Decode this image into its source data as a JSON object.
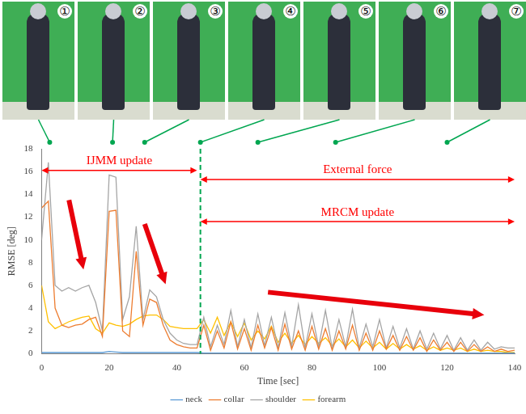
{
  "chart_data": {
    "type": "line",
    "xlabel": "Time [sec]",
    "ylabel": "RMSE [deg]",
    "xlim": [
      0,
      140
    ],
    "xticks": [
      0,
      20,
      40,
      60,
      80,
      100,
      120,
      140
    ],
    "ylim": [
      0,
      18
    ],
    "yticks": [
      0,
      2,
      4,
      6,
      8,
      10,
      12,
      14,
      16,
      18
    ],
    "grid": false,
    "legend": "bottom",
    "x": [
      0,
      2,
      4,
      6,
      8,
      10,
      12,
      14,
      16,
      18,
      20,
      22,
      24,
      26,
      28,
      30,
      32,
      34,
      36,
      38,
      40,
      42,
      44,
      46,
      48,
      50,
      52,
      54,
      56,
      58,
      60,
      62,
      64,
      66,
      68,
      70,
      72,
      74,
      76,
      78,
      80,
      82,
      84,
      86,
      88,
      90,
      92,
      94,
      96,
      98,
      100,
      102,
      104,
      106,
      108,
      110,
      112,
      114,
      116,
      118,
      120,
      122,
      124,
      126,
      128,
      130,
      132,
      134,
      136,
      138,
      140
    ],
    "series": [
      {
        "name": "neck",
        "color": "#5b9bd5",
        "values": [
          0.1,
          0.1,
          0.1,
          0.1,
          0.1,
          0.1,
          0.1,
          0.1,
          0.1,
          0.1,
          0.2,
          0.15,
          0.1,
          0.1,
          0.1,
          0.1,
          0.1,
          0.1,
          0.1,
          0.1,
          0.1,
          0.1,
          0.1,
          0.1,
          0.05,
          0.05,
          0.05,
          0.05,
          0.05,
          0.05,
          0.05,
          0.05,
          0.05,
          0.05,
          0.05,
          0.05,
          0.05,
          0.05,
          0.05,
          0.05,
          0.05,
          0.05,
          0.05,
          0.05,
          0.05,
          0.05,
          0.05,
          0.05,
          0.05,
          0.05,
          0.05,
          0.05,
          0.05,
          0.05,
          0.05,
          0.05,
          0.05,
          0.05,
          0.05,
          0.05,
          0.05,
          0.05,
          0.05,
          0.05,
          0.05,
          0.05,
          0.05,
          0.05,
          0.05,
          0.05,
          0.05
        ]
      },
      {
        "name": "collar",
        "color": "#ed7d31",
        "values": [
          12.8,
          13.4,
          4,
          2.5,
          2.3,
          2.5,
          2.6,
          3.0,
          3.2,
          1.5,
          12.5,
          12.6,
          2,
          1.5,
          9,
          2.5,
          4.8,
          4.5,
          2.5,
          1.2,
          0.8,
          0.6,
          0.5,
          0.5,
          2.5,
          0.3,
          2.0,
          0.5,
          2.8,
          0.4,
          2.2,
          0.3,
          2.5,
          0.5,
          2.3,
          0.3,
          2.6,
          0.4,
          2.0,
          0.3,
          2.4,
          0.4,
          2.2,
          0.3,
          2.0,
          0.4,
          2.5,
          0.3,
          1.8,
          0.3,
          2.0,
          0.4,
          1.6,
          0.3,
          1.5,
          0.3,
          1.4,
          0.2,
          1.2,
          0.3,
          1.0,
          0.2,
          1.0,
          0.2,
          0.8,
          0.2,
          0.6,
          0.2,
          0.4,
          0.2,
          0.3
        ]
      },
      {
        "name": "shoulder",
        "color": "#a5a5a5",
        "values": [
          10,
          16.8,
          6,
          5.5,
          5.8,
          5.5,
          5.8,
          6.0,
          4.5,
          2,
          15.7,
          15.5,
          3,
          5,
          11.2,
          3,
          5.6,
          5.0,
          3,
          1.8,
          1.2,
          0.9,
          0.8,
          0.8,
          3.2,
          0.6,
          2.5,
          0.8,
          3.8,
          0.6,
          3.0,
          0.5,
          3.5,
          0.7,
          3.2,
          0.5,
          3.6,
          0.6,
          4.3,
          0.5,
          3.5,
          0.6,
          3.8,
          0.5,
          3.0,
          0.6,
          3.9,
          0.5,
          2.6,
          0.6,
          3.0,
          0.5,
          2.4,
          0.5,
          2.2,
          0.4,
          2.0,
          0.4,
          1.8,
          0.4,
          1.6,
          0.3,
          1.4,
          0.3,
          1.2,
          0.3,
          1.0,
          0.4,
          0.6,
          0.5,
          0.5
        ]
      },
      {
        "name": "forearm",
        "color": "#ffc000",
        "values": [
          6,
          2.8,
          2.2,
          2.5,
          2.8,
          3.0,
          3.2,
          3.3,
          2.2,
          1.8,
          2.7,
          2.5,
          2.4,
          2.6,
          3.0,
          3.3,
          3.4,
          3.4,
          3.0,
          2.4,
          2.3,
          2.2,
          2.2,
          2.2,
          3.0,
          1.8,
          3.2,
          1.6,
          2.8,
          1.5,
          2.7,
          1.2,
          2.0,
          1.3,
          2.4,
          1.0,
          1.8,
          0.9,
          1.6,
          0.8,
          1.5,
          0.9,
          1.4,
          0.7,
          1.3,
          0.6,
          1.2,
          0.5,
          1.1,
          0.5,
          1.0,
          0.4,
          0.9,
          0.4,
          0.8,
          0.4,
          0.7,
          0.3,
          0.6,
          0.3,
          0.5,
          0.3,
          0.5,
          0.2,
          0.4,
          0.2,
          0.3,
          0.2,
          0.2,
          0.1,
          0.1
        ]
      }
    ],
    "annotations": [
      {
        "text": "IJMM update",
        "x": [
          0,
          46
        ],
        "y": 16.1
      },
      {
        "text": "External force",
        "x": [
          47,
          140
        ],
        "y": 15.3
      },
      {
        "text": "MRCM update",
        "x": [
          47,
          140
        ],
        "y": 11.6
      }
    ],
    "arrows": [
      {
        "x": [
          8.1,
          12.4
        ],
        "y": [
          13.5,
          7.4
        ]
      },
      {
        "x": [
          30.5,
          36.7
        ],
        "y": [
          11.4,
          6.1
        ]
      },
      {
        "x": [
          67,
          131
        ],
        "y": [
          5.4,
          3.4
        ]
      }
    ],
    "event_line": {
      "x": 47
    },
    "photos": [
      {
        "label": "①",
        "time": 2.4
      },
      {
        "label": "②",
        "time": 21
      },
      {
        "label": "③",
        "time": 30.5
      },
      {
        "label": "④",
        "time": 47
      },
      {
        "label": "⑤",
        "time": 64
      },
      {
        "label": "⑥",
        "time": 87
      },
      {
        "label": "⑦",
        "time": 120
      }
    ]
  }
}
